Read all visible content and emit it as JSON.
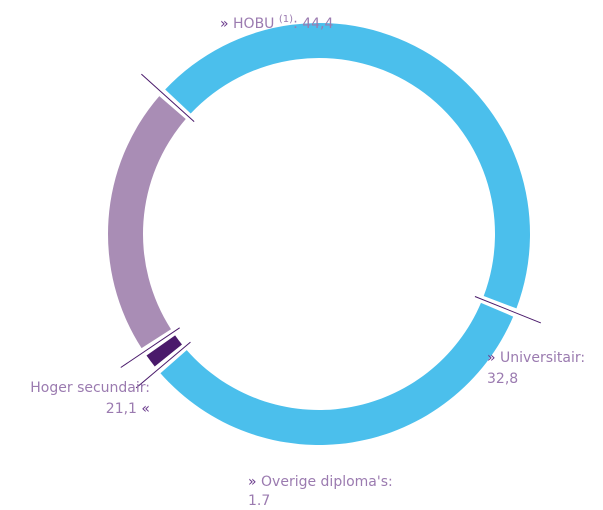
{
  "chart_data": {
    "type": "donut",
    "categories": [
      "HOBU",
      "Universitair",
      "Overige diploma's",
      "Hoger secundair"
    ],
    "category_notes": [
      "(1)",
      null,
      null,
      null
    ],
    "values": [
      44.4,
      32.8,
      1.7,
      21.1
    ],
    "value_labels": [
      "44,4",
      "32,8",
      "1.7",
      "21,1"
    ],
    "colors": [
      "#4bbfec",
      "#4bbfec",
      "#4a1a6b",
      "#a98db5"
    ],
    "markers": {
      "left": "»",
      "right": "«",
      "colon": ":"
    }
  }
}
